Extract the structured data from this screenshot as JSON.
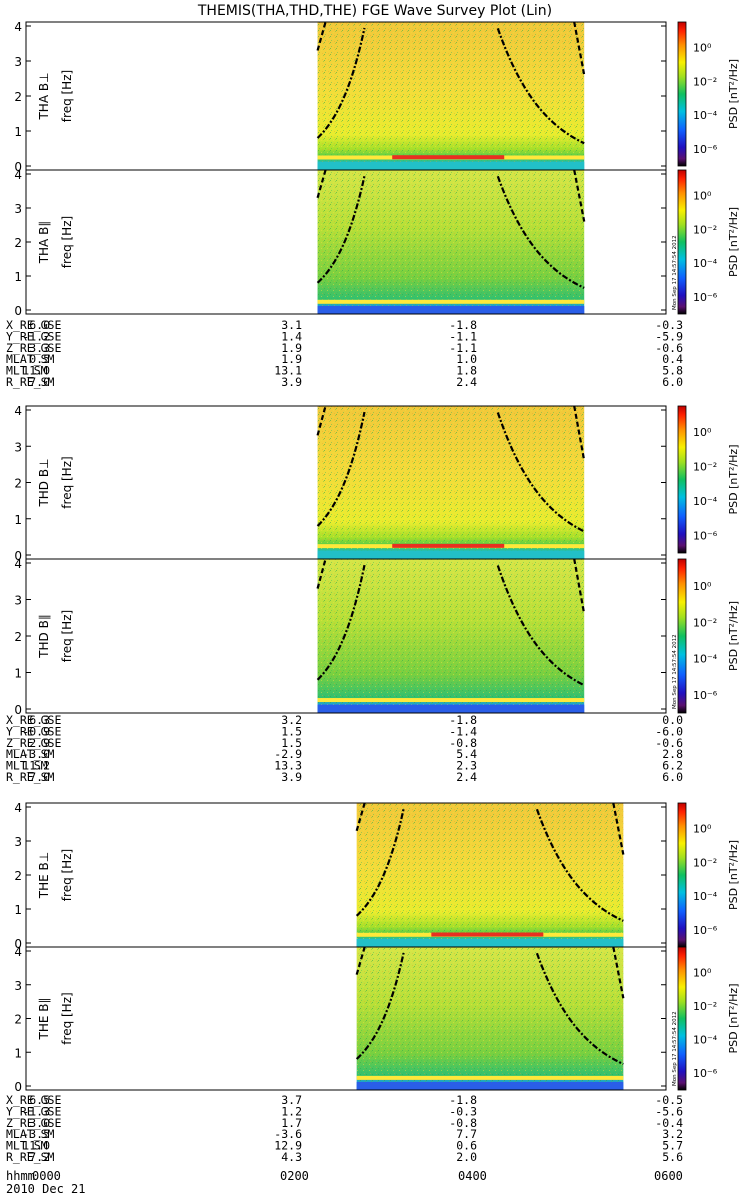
{
  "title": "THEMIS(THA,THD,THE) FGE Wave Survey Plot (Lin)",
  "colorbar": {
    "label": "PSD [nT²/Hz]",
    "ticks": [
      "10⁰",
      "10⁻²",
      "10⁻⁴",
      "10⁻⁶"
    ],
    "stamp": "Mon Sep 17 14:57:54 2012"
  },
  "freq_axis": {
    "label": "freq [Hz]",
    "ticks": [
      "0",
      "1",
      "2",
      "3",
      "4"
    ]
  },
  "time_axis": {
    "label": "hhmm",
    "ticks": [
      "0000",
      "0200",
      "0400",
      "0600"
    ],
    "date": "2010 Dec 21"
  },
  "chart_data": {
    "type": "heatmap",
    "x_unit": "hhmm",
    "xlim": [
      "0000",
      "0600"
    ],
    "ylim": [
      0,
      4
    ],
    "panels": [
      {
        "probe": "THA",
        "component": "THA B⊥",
        "data_start": "0244",
        "data_end": "0514"
      },
      {
        "probe": "THA",
        "component": "THA B∥",
        "data_start": "0244",
        "data_end": "0514"
      },
      {
        "probe": "THD",
        "component": "THD B⊥",
        "data_start": "0244",
        "data_end": "0514"
      },
      {
        "probe": "THD",
        "component": "THD B∥",
        "data_start": "0244",
        "data_end": "0514"
      },
      {
        "probe": "THE",
        "component": "THE B⊥",
        "data_start": "0306",
        "data_end": "0536"
      },
      {
        "probe": "THE",
        "component": "THE B∥",
        "data_start": "0306",
        "data_end": "0536"
      }
    ]
  },
  "ephemeris": [
    {
      "probe": "THA",
      "rows": [
        {
          "label": "X_RE_GSE",
          "values": [
            "6.0",
            "3.1",
            "-1.8",
            "-0.3"
          ]
        },
        {
          "label": "Y_RE_GSE",
          "values": [
            "-1.2",
            "1.4",
            "-1.1",
            "-5.9"
          ]
        },
        {
          "label": "Z_RE_GSE",
          "values": [
            "3.3",
            "1.9",
            "-1.1",
            "-0.6"
          ]
        },
        {
          "label": "MLAT_SM",
          "values": [
            "0.5",
            "1.9",
            "1.0",
            "0.4"
          ]
        },
        {
          "label": "MLT_SM",
          "values": [
            "11.0",
            "13.1",
            "1.8",
            "5.8"
          ]
        },
        {
          "label": "R_RE_SM",
          "values": [
            "7.0",
            "3.9",
            "2.4",
            "6.0"
          ]
        }
      ]
    },
    {
      "probe": "THD",
      "rows": [
        {
          "label": "X_RE_GSE",
          "values": [
            "6.3",
            "3.2",
            "-1.8",
            "0.0"
          ]
        },
        {
          "label": "Y_RE_GSE",
          "values": [
            "-0.9",
            "1.5",
            "-1.4",
            "-6.0"
          ]
        },
        {
          "label": "Z_RE_GSE",
          "values": [
            "2.9",
            "1.5",
            "-0.8",
            "-0.6"
          ]
        },
        {
          "label": "MLAT_SM",
          "values": [
            "-3.0",
            "-2.9",
            "5.4",
            "2.8"
          ]
        },
        {
          "label": "MLT_SM",
          "values": [
            "11.2",
            "13.3",
            "2.3",
            "6.2"
          ]
        },
        {
          "label": "R_RE_SM",
          "values": [
            "7.0",
            "3.9",
            "2.4",
            "6.0"
          ]
        }
      ]
    },
    {
      "probe": "THE",
      "rows": [
        {
          "label": "X_RE_GSE",
          "values": [
            "6.5",
            "3.7",
            "-1.8",
            "-0.5"
          ]
        },
        {
          "label": "Y_RE_GSE",
          "values": [
            "-1.3",
            "1.2",
            "-0.3",
            "-5.6"
          ]
        },
        {
          "label": "Z_RE_GSE",
          "values": [
            "3.0",
            "1.7",
            "-0.8",
            "-0.4"
          ]
        },
        {
          "label": "MLAT_SM",
          "values": [
            "-3.5",
            "-3.6",
            "7.7",
            "3.2"
          ]
        },
        {
          "label": "MLT_SM",
          "values": [
            "11.0",
            "12.9",
            "0.6",
            "5.7"
          ]
        },
        {
          "label": "R_RE_SM",
          "values": [
            "7.2",
            "4.3",
            "2.0",
            "5.6"
          ]
        }
      ]
    }
  ]
}
